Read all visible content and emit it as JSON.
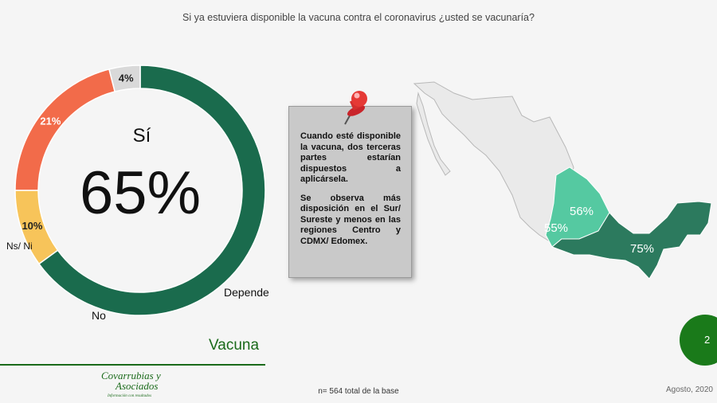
{
  "question": "Si ya estuviera disponible la vacuna contra el coronavirus ¿usted se vacunaría?",
  "chart_data": {
    "type": "pie",
    "variant": "donut",
    "categories": [
      "Sí",
      "Depende",
      "No",
      "Ns/ Ni"
    ],
    "values": [
      65,
      10,
      21,
      4
    ],
    "value_labels": [
      "65%",
      "10%",
      "21%",
      "4%"
    ],
    "colors": [
      "#1a6b4d",
      "#f7c45a",
      "#f26b4a",
      "#d9d9d9"
    ]
  },
  "note": {
    "paragraph1": "Cuando esté disponible la vacuna, dos terceras partes estarían dispuestos a aplicársela.",
    "paragraph2": "Se observa más disposición en el Sur/ Sureste y menos en las regiones Centro y CDMX/ Edomex."
  },
  "map": {
    "labels": [
      "56%",
      "55%",
      "75%"
    ],
    "colors": {
      "base": "#eaeaea",
      "centro": "#55c9a1",
      "sur": "#2c7a5e",
      "border": "#b8b8b8"
    }
  },
  "footer": {
    "section_title": "Vacuna",
    "base_note": "n= 564 total de la base",
    "date": "Agosto, 2020",
    "page_number": "2",
    "logo_text_1": "Covarrubias y",
    "logo_text_2": "Asociados",
    "logo_tagline": "Información con resultados"
  }
}
